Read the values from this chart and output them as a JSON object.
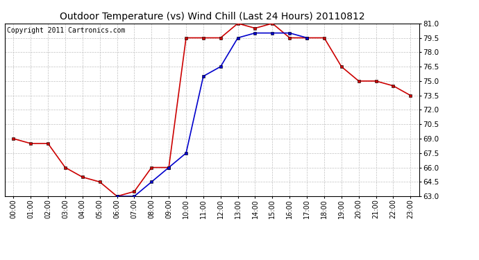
{
  "title": "Outdoor Temperature (vs) Wind Chill (Last 24 Hours) 20110812",
  "copyright_text": "Copyright 2011 Cartronics.com",
  "hours": [
    "00:00",
    "01:00",
    "02:00",
    "03:00",
    "04:00",
    "05:00",
    "06:00",
    "07:00",
    "08:00",
    "09:00",
    "10:00",
    "11:00",
    "12:00",
    "13:00",
    "14:00",
    "15:00",
    "16:00",
    "17:00",
    "18:00",
    "19:00",
    "20:00",
    "21:00",
    "22:00",
    "23:00"
  ],
  "temp": [
    69.0,
    68.5,
    68.5,
    66.0,
    65.0,
    64.5,
    63.0,
    63.5,
    66.0,
    66.0,
    79.5,
    79.5,
    79.5,
    81.0,
    80.5,
    81.0,
    79.5,
    79.5,
    79.5,
    76.5,
    75.0,
    75.0,
    74.5,
    73.5
  ],
  "wind_chill": [
    null,
    null,
    null,
    null,
    null,
    null,
    63.0,
    63.0,
    64.5,
    66.0,
    67.5,
    75.5,
    76.5,
    79.5,
    80.0,
    80.0,
    80.0,
    79.5,
    null,
    null,
    null,
    null,
    null,
    null
  ],
  "temp_color": "#cc0000",
  "wind_chill_color": "#0000cc",
  "ylim_min": 63.0,
  "ylim_max": 81.0,
  "yticks": [
    63.0,
    64.5,
    66.0,
    67.5,
    69.0,
    70.5,
    72.0,
    73.5,
    75.0,
    76.5,
    78.0,
    79.5,
    81.0
  ],
  "bg_color": "#ffffff",
  "plot_bg_color": "#ffffff",
  "grid_color": "#c0c0c0",
  "title_fontsize": 10,
  "copyright_fontsize": 7,
  "marker": "s",
  "marker_size": 3,
  "linewidth": 1.2
}
